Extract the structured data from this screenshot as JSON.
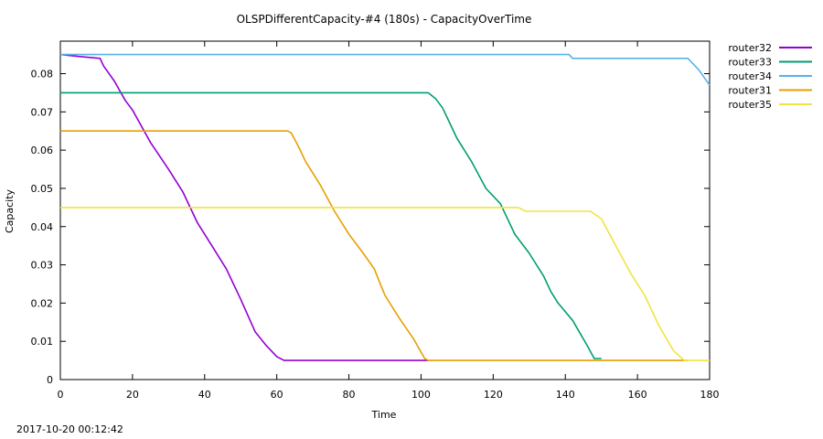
{
  "timestamp": "2017-10-20 00:12:42",
  "chart_data": {
    "type": "line",
    "title": "OLSPDifferentCapacity-#4 (180s) - CapacityOverTime",
    "xlabel": "Time",
    "ylabel": "Capacity",
    "xlim": [
      0,
      180
    ],
    "ylim": [
      0,
      0.0885
    ],
    "x_ticks": [
      0,
      20,
      40,
      60,
      80,
      100,
      120,
      140,
      160,
      180
    ],
    "x_tick_labels": [
      "0",
      "20",
      "40",
      "60",
      "80",
      "100",
      "120",
      "140",
      "160",
      "180"
    ],
    "y_ticks": [
      0,
      0.01,
      0.02,
      0.03,
      0.04,
      0.05,
      0.06,
      0.07,
      0.08
    ],
    "y_tick_labels": [
      "0",
      "0.01",
      "0.02",
      "0.03",
      "0.04",
      "0.05",
      "0.06",
      "0.07",
      "0.08"
    ],
    "grid": false,
    "legend_position": "outside-right",
    "series": [
      {
        "name": "router32",
        "color": "#9400d3",
        "points": [
          [
            0,
            0.085
          ],
          [
            5,
            0.0845
          ],
          [
            11,
            0.084
          ],
          [
            12,
            0.082
          ],
          [
            15,
            0.078
          ],
          [
            18,
            0.073
          ],
          [
            20,
            0.0705
          ],
          [
            25,
            0.062
          ],
          [
            30,
            0.055
          ],
          [
            34,
            0.049
          ],
          [
            38,
            0.041
          ],
          [
            42,
            0.035
          ],
          [
            46,
            0.029
          ],
          [
            50,
            0.021
          ],
          [
            54,
            0.0125
          ],
          [
            57,
            0.009
          ],
          [
            60,
            0.006
          ],
          [
            62,
            0.005
          ],
          [
            100,
            0.005
          ],
          [
            102,
            0.005
          ]
        ]
      },
      {
        "name": "router33",
        "color": "#009e73",
        "points": [
          [
            0,
            0.075
          ],
          [
            102,
            0.075
          ],
          [
            104,
            0.0735
          ],
          [
            106,
            0.071
          ],
          [
            108,
            0.067
          ],
          [
            110,
            0.063
          ],
          [
            114,
            0.057
          ],
          [
            118,
            0.05
          ],
          [
            122,
            0.046
          ],
          [
            126,
            0.038
          ],
          [
            130,
            0.033
          ],
          [
            134,
            0.027
          ],
          [
            136,
            0.023
          ],
          [
            138,
            0.02
          ],
          [
            142,
            0.0155
          ],
          [
            146,
            0.009
          ],
          [
            148,
            0.0055
          ],
          [
            150,
            0.0055
          ]
        ]
      },
      {
        "name": "router34",
        "color": "#56b4e9",
        "points": [
          [
            0,
            0.085
          ],
          [
            141,
            0.085
          ],
          [
            142,
            0.084
          ],
          [
            174,
            0.084
          ],
          [
            177,
            0.081
          ],
          [
            180,
            0.077
          ]
        ]
      },
      {
        "name": "router31",
        "color": "#e69f00",
        "points": [
          [
            0,
            0.065
          ],
          [
            63,
            0.065
          ],
          [
            64,
            0.0645
          ],
          [
            66,
            0.061
          ],
          [
            68,
            0.057
          ],
          [
            72,
            0.051
          ],
          [
            76,
            0.044
          ],
          [
            80,
            0.038
          ],
          [
            84,
            0.033
          ],
          [
            87,
            0.029
          ],
          [
            90,
            0.022
          ],
          [
            94,
            0.016
          ],
          [
            98,
            0.0105
          ],
          [
            101,
            0.0055
          ],
          [
            102,
            0.005
          ],
          [
            174,
            0.005
          ]
        ]
      },
      {
        "name": "router35",
        "color": "#f0e442",
        "points": [
          [
            0,
            0.045
          ],
          [
            127,
            0.045
          ],
          [
            129,
            0.044
          ],
          [
            147,
            0.044
          ],
          [
            150,
            0.042
          ],
          [
            154,
            0.035
          ],
          [
            158,
            0.028
          ],
          [
            162,
            0.022
          ],
          [
            166,
            0.014
          ],
          [
            170,
            0.0075
          ],
          [
            173,
            0.005
          ],
          [
            180,
            0.005
          ]
        ]
      }
    ]
  }
}
